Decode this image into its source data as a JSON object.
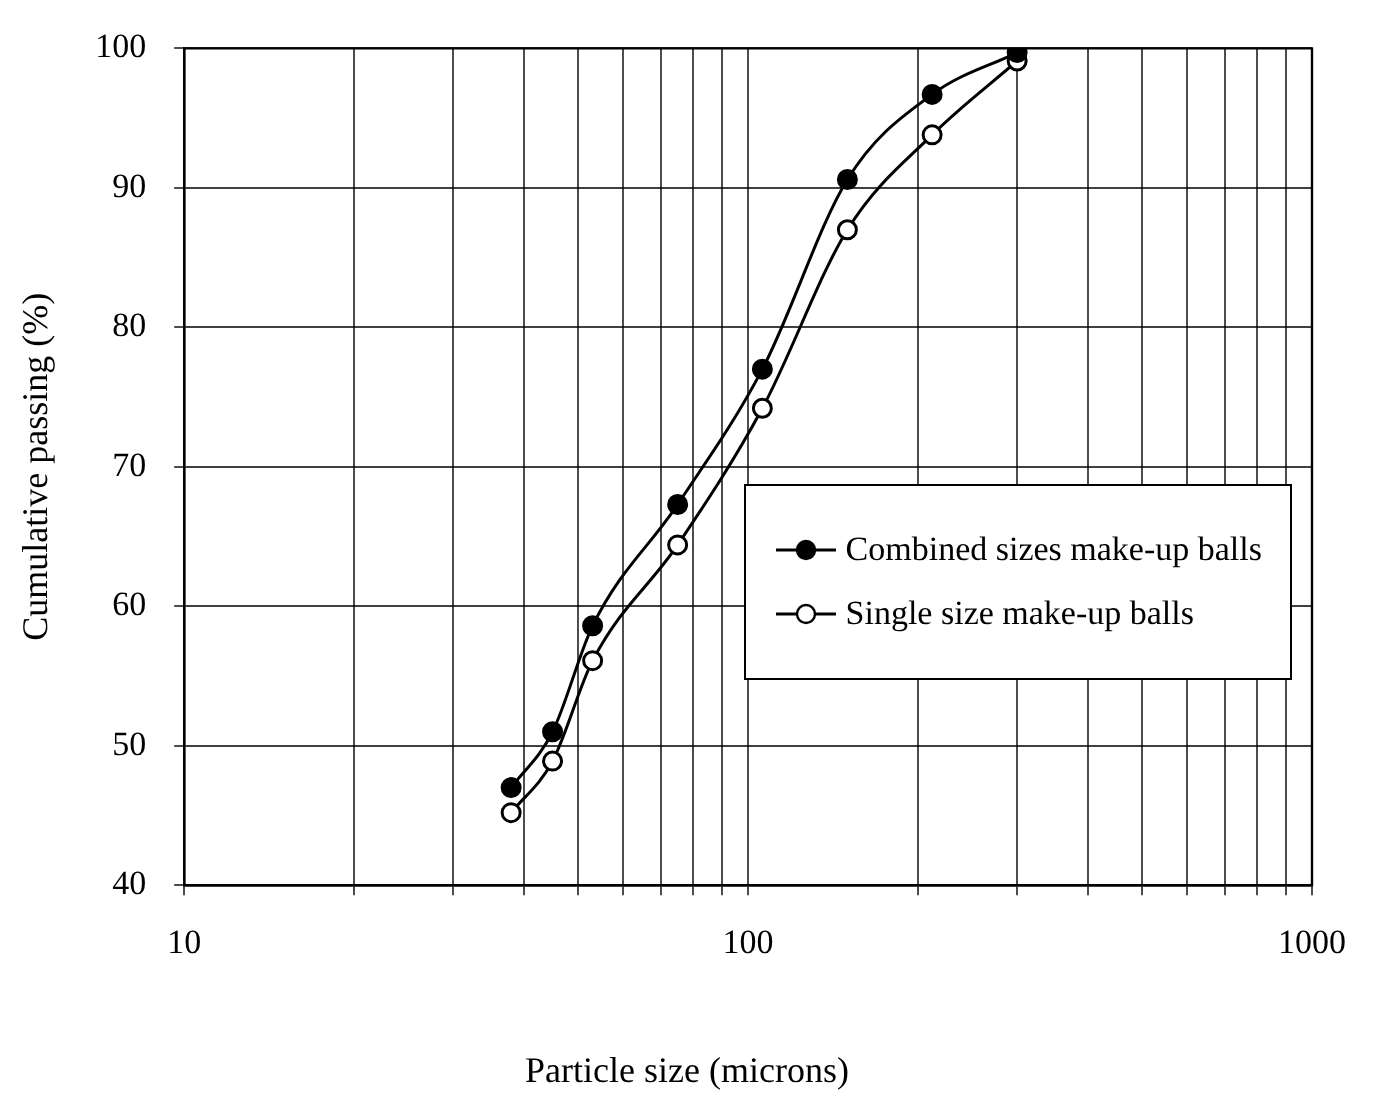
{
  "chart_data": {
    "type": "line",
    "xlabel": "Particle size (microns)",
    "ylabel": "Cumulative passing (%)",
    "x": [
      38,
      45,
      53,
      75,
      106,
      150,
      212,
      300
    ],
    "series": [
      {
        "name": "Combined sizes make-up balls",
        "color": "#000000",
        "marker": "circle",
        "values": [
          47,
          51,
          58.6,
          67.3,
          77,
          90.6,
          96.7,
          99.7
        ]
      },
      {
        "name": "Single size make-up balls",
        "color": "#000000",
        "marker": "circle",
        "values": [
          45.2,
          48.9,
          56.1,
          64.4,
          74.2,
          87,
          93.8,
          99.1
        ]
      }
    ],
    "log": "x",
    "xlim": [
      10,
      1000
    ],
    "ylim": [
      40,
      100
    ],
    "xticks": [
      10,
      {
        "value": 20,
        "label": null
      },
      {
        "value": 30,
        "label": null
      },
      {
        "value": 40,
        "label": null
      },
      {
        "value": 50,
        "label": null
      },
      {
        "value": 60,
        "label": null
      },
      {
        "value": 70,
        "label": null
      },
      {
        "value": 80,
        "label": null
      },
      {
        "value": 90,
        "label": null
      },
      100,
      {
        "value": 200,
        "label": null
      },
      {
        "value": 300,
        "label": null
      },
      {
        "value": 400,
        "label": null
      },
      {
        "value": 500,
        "label": null
      },
      {
        "value": 600,
        "label": null
      },
      {
        "value": 700,
        "label": null
      },
      {
        "value": 800,
        "label": null
      },
      {
        "value": 900,
        "label": null
      },
      1000
    ],
    "yticks": [
      40,
      50,
      60,
      70,
      80,
      90,
      100
    ],
    "grid": true,
    "legend": "bottom right",
    "line_style": "solid"
  }
}
